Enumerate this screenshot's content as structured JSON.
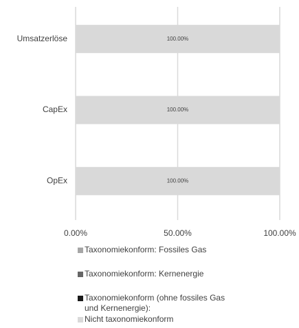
{
  "chart_data": {
    "type": "stacked-bar-horizontal",
    "categories": [
      "Umsatzerlöse",
      "CapEx",
      "OpEx"
    ],
    "series": [
      {
        "name": "Taxonomiekonform: Fossiles Gas",
        "color": "#a6a6a6",
        "values": [
          0,
          0,
          0
        ]
      },
      {
        "name": "Taxonomiekonform: Kernenergie",
        "color": "#666666",
        "values": [
          0,
          0,
          0
        ]
      },
      {
        "name": "Taxonomiekonform (ohne fossiles Gas und Kernenergie):",
        "color": "#1a1a1a",
        "values": [
          0,
          0,
          0
        ]
      },
      {
        "name": "Nicht taxonomiekonform",
        "color": "#d9d9d9",
        "values": [
          100,
          100,
          100
        ],
        "value_labels": [
          "100.00%",
          "100.00%",
          "100.00%"
        ]
      }
    ],
    "xlim": [
      0,
      100
    ],
    "xticks": [
      {
        "value": 0,
        "label": "0.00%"
      },
      {
        "value": 50,
        "label": "50.00%"
      },
      {
        "value": 100,
        "label": "100.00%"
      }
    ],
    "grid": true,
    "legend": "bottom"
  }
}
